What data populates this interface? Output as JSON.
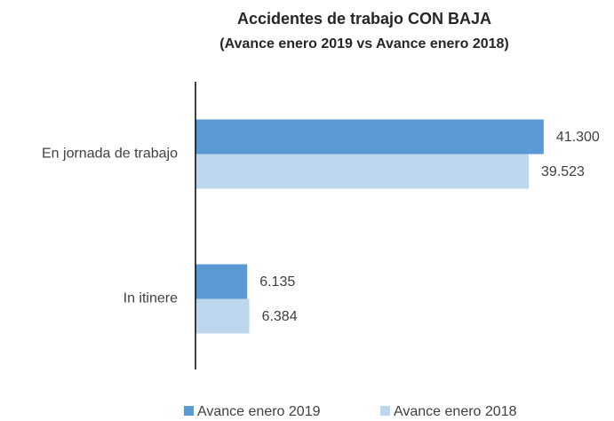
{
  "chart_data": {
    "type": "bar",
    "orientation": "horizontal",
    "title": "Accidentes de trabajo CON BAJA",
    "subtitle": "(Avance enero 2019 vs Avance enero 2018)",
    "categories": [
      "En jornada de trabajo",
      "In itinere"
    ],
    "series": [
      {
        "name": "Avance enero 2019",
        "color": "#5b9bd5",
        "values": [
          41300,
          6135
        ],
        "value_labels": [
          "41.300",
          "6.135"
        ]
      },
      {
        "name": "Avance enero 2018",
        "color": "#bdd7ee",
        "values": [
          39523,
          6384
        ],
        "value_labels": [
          "39.523",
          "6.384"
        ]
      }
    ],
    "xlim": [
      0,
      45000
    ],
    "legend": "bottom"
  }
}
